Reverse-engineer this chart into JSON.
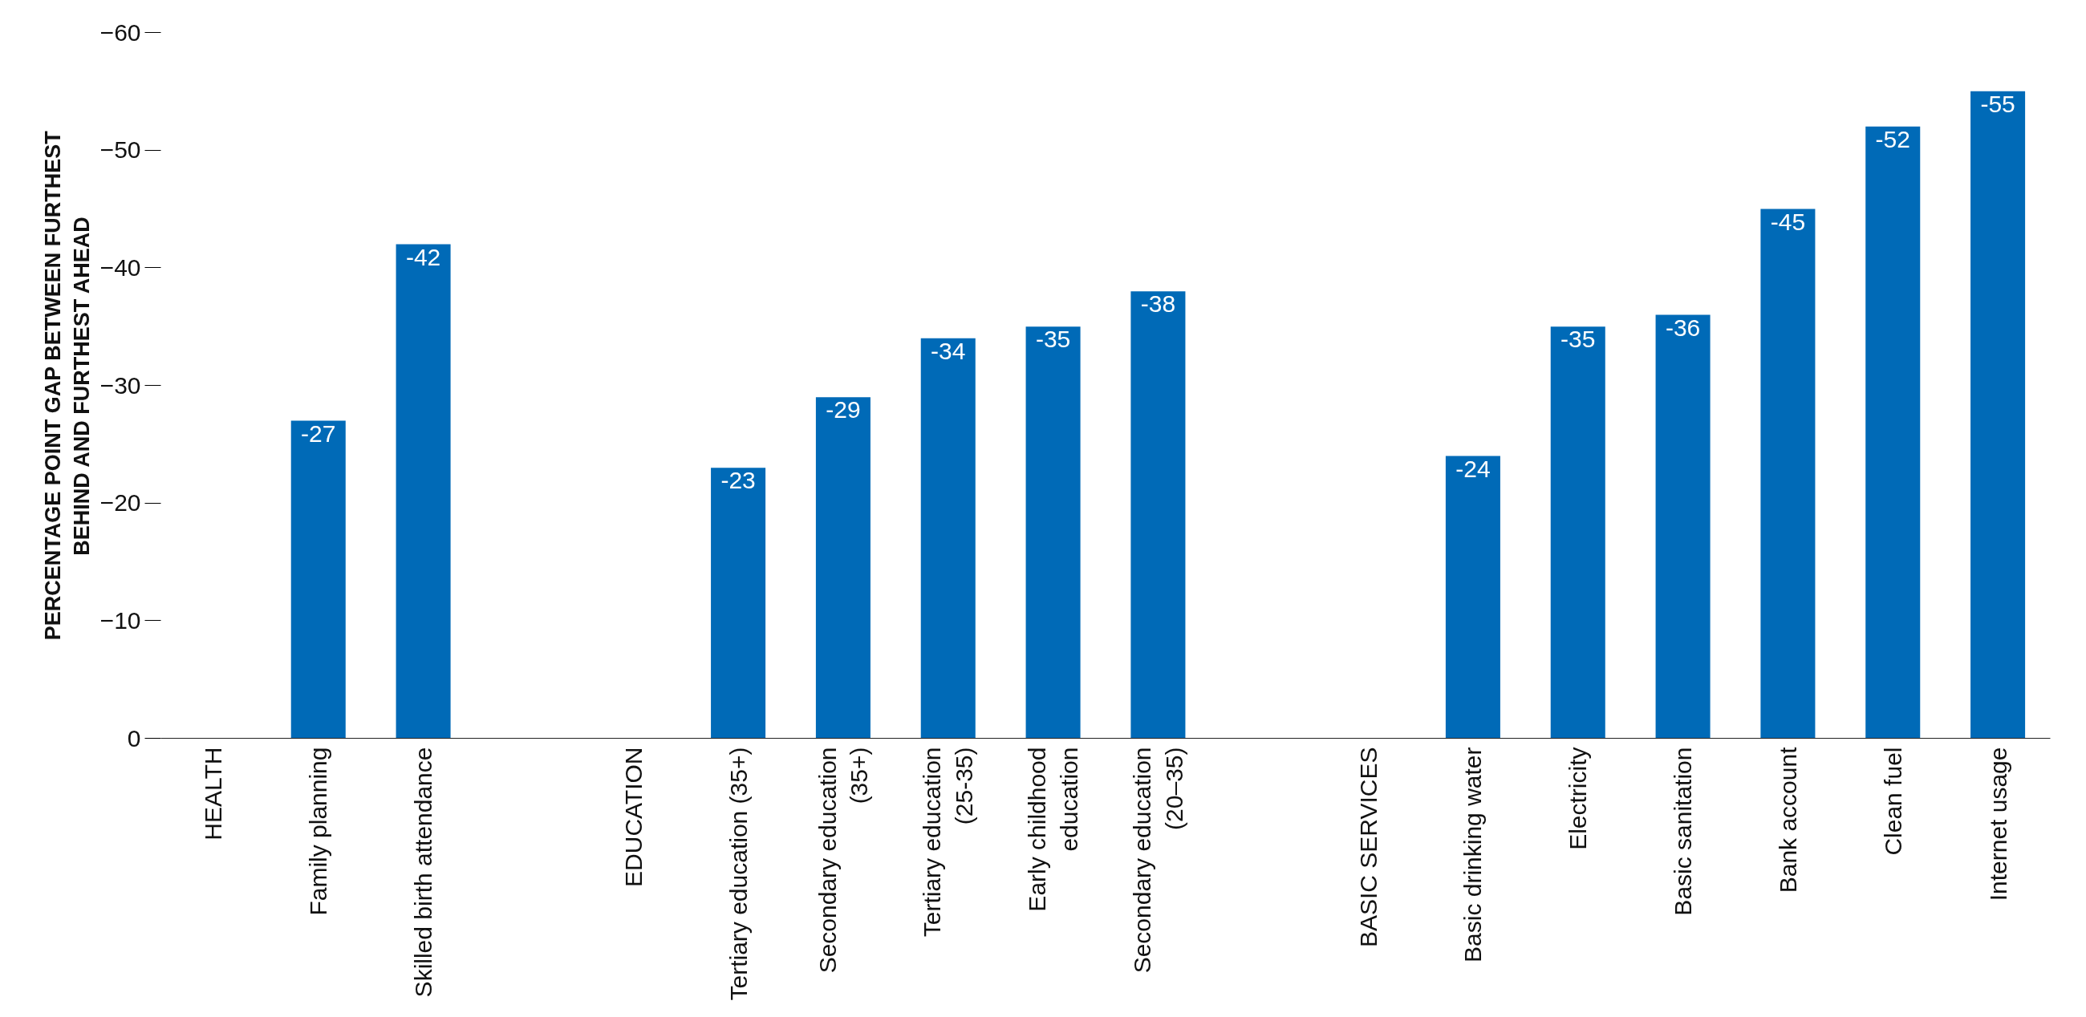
{
  "chart_data": {
    "type": "bar",
    "ylabel": "PERCENTAGE POINT GAP BETWEEN FURTHEST BEHIND AND FURTHEST AHEAD",
    "categories": [
      "HEALTH",
      "Family planning",
      "Skilled birth attendance",
      null,
      "EDUCATION",
      "Tertiary education (35+)",
      "Secondary education (35+)",
      "Tertiary education (25-35)",
      "Early childhood education",
      "Secondary education (20–35)",
      null,
      "BASIC SERVICES",
      "Basic drinking water",
      "Electricity",
      "Basic sanitation",
      "Bank account",
      "Clean fuel",
      "Internet usage"
    ],
    "values": [
      null,
      -27,
      -42,
      null,
      null,
      -23,
      -29,
      -34,
      -35,
      -38,
      null,
      null,
      -24,
      -35,
      -36,
      -45,
      -52,
      -55
    ],
    "color": "#006ab7",
    "data_labels": true,
    "grid": false,
    "ylim": [
      0,
      -60
    ],
    "yticks": [
      0,
      -10,
      -20,
      -30,
      -40,
      -50,
      -60
    ]
  }
}
